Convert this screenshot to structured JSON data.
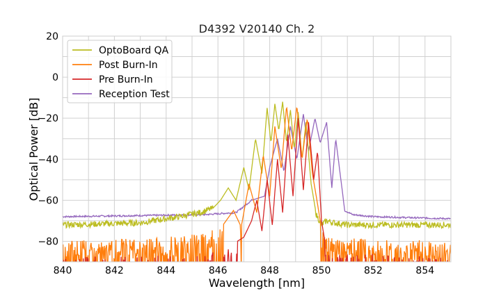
{
  "chart_data": {
    "type": "line",
    "title": "D4392 V20140 Ch. 2",
    "xlabel": "Wavelength [nm]",
    "ylabel": "Optical Power [dB]",
    "xlim": [
      840,
      855
    ],
    "ylim": [
      -90,
      20
    ],
    "xticks": [
      "840",
      "842",
      "844",
      "846",
      "848",
      "850",
      "852",
      "854"
    ],
    "yticks": [
      "20",
      "0",
      "−20",
      "−40",
      "−60",
      "−80"
    ],
    "grid": true,
    "legend_position": "top-left",
    "series": [
      {
        "name": "OptoBoard QA",
        "color": "#bcbd22",
        "noise_floor": -72,
        "x": [
          840,
          843,
          844.5,
          845.3,
          845.8,
          846.1,
          846.4,
          846.7,
          847.0,
          847.2,
          847.45,
          847.7,
          847.9,
          848.05,
          848.2,
          848.35,
          848.5,
          848.65,
          848.8,
          848.95,
          849.1,
          849.25,
          849.4,
          849.6,
          849.8,
          850.0,
          850.2,
          850.5,
          851,
          855
        ],
        "y": [
          -72,
          -71,
          -68,
          -66,
          -64,
          -60,
          -54,
          -60,
          -44,
          -55,
          -30,
          -47,
          -15,
          -32,
          -13,
          -26,
          -12,
          -32,
          -16,
          -35,
          -17,
          -40,
          -22,
          -52,
          -67,
          -72,
          -70,
          -71,
          -72,
          -72
        ]
      },
      {
        "name": "Post Burn-In",
        "color": "#ff7f0e",
        "noise_floor": -80,
        "x": [
          840,
          844,
          845.5,
          846.2,
          846.6,
          846.9,
          847.2,
          847.5,
          847.75,
          848.0,
          848.2,
          848.45,
          848.65,
          848.85,
          849.05,
          849.25,
          849.45,
          849.65,
          849.85,
          850.0,
          850.2,
          855
        ],
        "y": [
          -80,
          -78,
          -76,
          -72,
          -65,
          -73,
          -52,
          -66,
          -38,
          -58,
          -24,
          -45,
          -14,
          -36,
          -14,
          -40,
          -20,
          -47,
          -62,
          -74,
          -78,
          -80
        ]
      },
      {
        "name": "Pre Burn-In",
        "color": "#d62728",
        "noise_floor": -88,
        "x": [
          840,
          846.0,
          846.5,
          847.0,
          847.3,
          847.5,
          847.7,
          847.9,
          848.1,
          848.3,
          848.5,
          848.7,
          848.9,
          849.1,
          849.3,
          849.5,
          849.7,
          849.85,
          850.0,
          850.2,
          855
        ],
        "y": [
          -88,
          -85,
          -82,
          -78,
          -70,
          -60,
          -75,
          -50,
          -72,
          -40,
          -66,
          -28,
          -58,
          -20,
          -55,
          -22,
          -50,
          -36,
          -70,
          -85,
          -88
        ]
      },
      {
        "name": "Reception Test",
        "color": "#9467bd",
        "noise_floor": -68,
        "x": [
          840,
          845.5,
          846.7,
          847.3,
          847.8,
          848.0,
          848.3,
          848.55,
          848.8,
          849.05,
          849.3,
          849.5,
          849.75,
          849.95,
          850.2,
          850.4,
          850.55,
          850.7,
          850.9,
          851.2,
          852,
          855
        ],
        "y": [
          -68,
          -67,
          -66,
          -60,
          -58,
          -44,
          -30,
          -46,
          -24,
          -40,
          -18,
          -36,
          -20,
          -32,
          -22,
          -54,
          -30,
          -45,
          -65,
          -67,
          -68,
          -69
        ]
      }
    ]
  }
}
